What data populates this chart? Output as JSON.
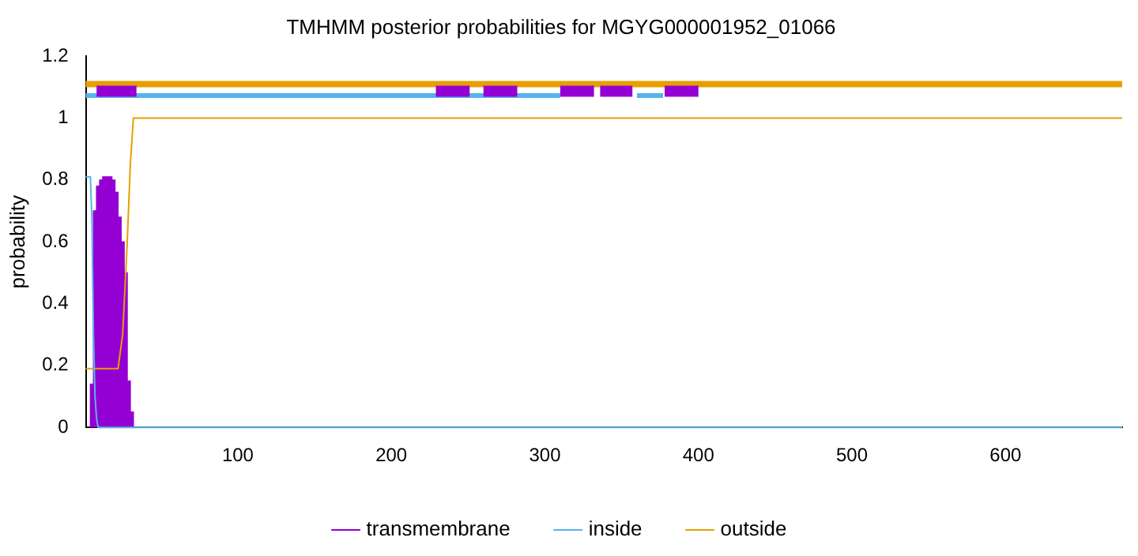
{
  "chart_data": {
    "type": "line",
    "title": "TMHMM posterior probabilities for MGYG000001952_01066",
    "ylabel": "probability",
    "xlim": [
      1,
      676
    ],
    "xticks": [
      100,
      200,
      300,
      400,
      500,
      600
    ],
    "ylim": [
      0,
      1.2
    ],
    "yticks": [
      0,
      0.2,
      0.4,
      0.6,
      0.8,
      1,
      1.2
    ],
    "grid": false,
    "legend": "bottom",
    "marker": "none",
    "series": [
      {
        "name": "transmembrane",
        "type": "bar",
        "color": "#9400d3",
        "x": [
          5,
          7,
          9,
          11,
          13,
          15,
          17,
          19,
          21,
          23,
          25,
          27,
          29,
          31
        ],
        "values": [
          0.14,
          0.7,
          0.78,
          0.8,
          0.81,
          0.81,
          0.81,
          0.8,
          0.76,
          0.68,
          0.6,
          0.5,
          0.15,
          0.05
        ]
      },
      {
        "name": "inside",
        "color": "#56b4e9",
        "x": [
          1,
          4,
          5,
          6,
          7,
          8,
          9,
          676
        ],
        "values": [
          0.81,
          0.81,
          0.67,
          0.3,
          0.1,
          0.03,
          0,
          0
        ]
      },
      {
        "name": "outside",
        "color": "#e69f00",
        "x": [
          1,
          22,
          25,
          28,
          30,
          32,
          676
        ],
        "values": [
          0.19,
          0.19,
          0.3,
          0.6,
          0.85,
          1,
          1
        ]
      },
      {
        "color": "#e69f00",
        "x": [
          1,
          676
        ],
        "values": [
          1.11,
          1.11
        ]
      },
      {
        "color": "#56b4e9",
        "x": [
          1,
          310
        ],
        "values": [
          1.073,
          1.073
        ]
      },
      {
        "color": "#56b4e9",
        "x": [
          360,
          377
        ],
        "values": [
          1.073,
          1.073
        ]
      },
      {
        "color": "#9400d3",
        "x": [
          8,
          34
        ],
        "values": [
          1.087,
          1.087
        ]
      },
      {
        "color": "#9400d3",
        "x": [
          229,
          251
        ],
        "values": [
          1.087,
          1.087
        ]
      },
      {
        "color": "#9400d3",
        "x": [
          260,
          282
        ],
        "values": [
          1.087,
          1.087
        ]
      },
      {
        "color": "#9400d3",
        "x": [
          310,
          332
        ],
        "values": [
          1.087,
          1.087
        ]
      },
      {
        "color": "#9400d3",
        "x": [
          336,
          357
        ],
        "values": [
          1.087,
          1.087
        ]
      },
      {
        "color": "#9400d3",
        "x": [
          378,
          400
        ],
        "values": [
          1.087,
          1.087
        ]
      }
    ]
  }
}
